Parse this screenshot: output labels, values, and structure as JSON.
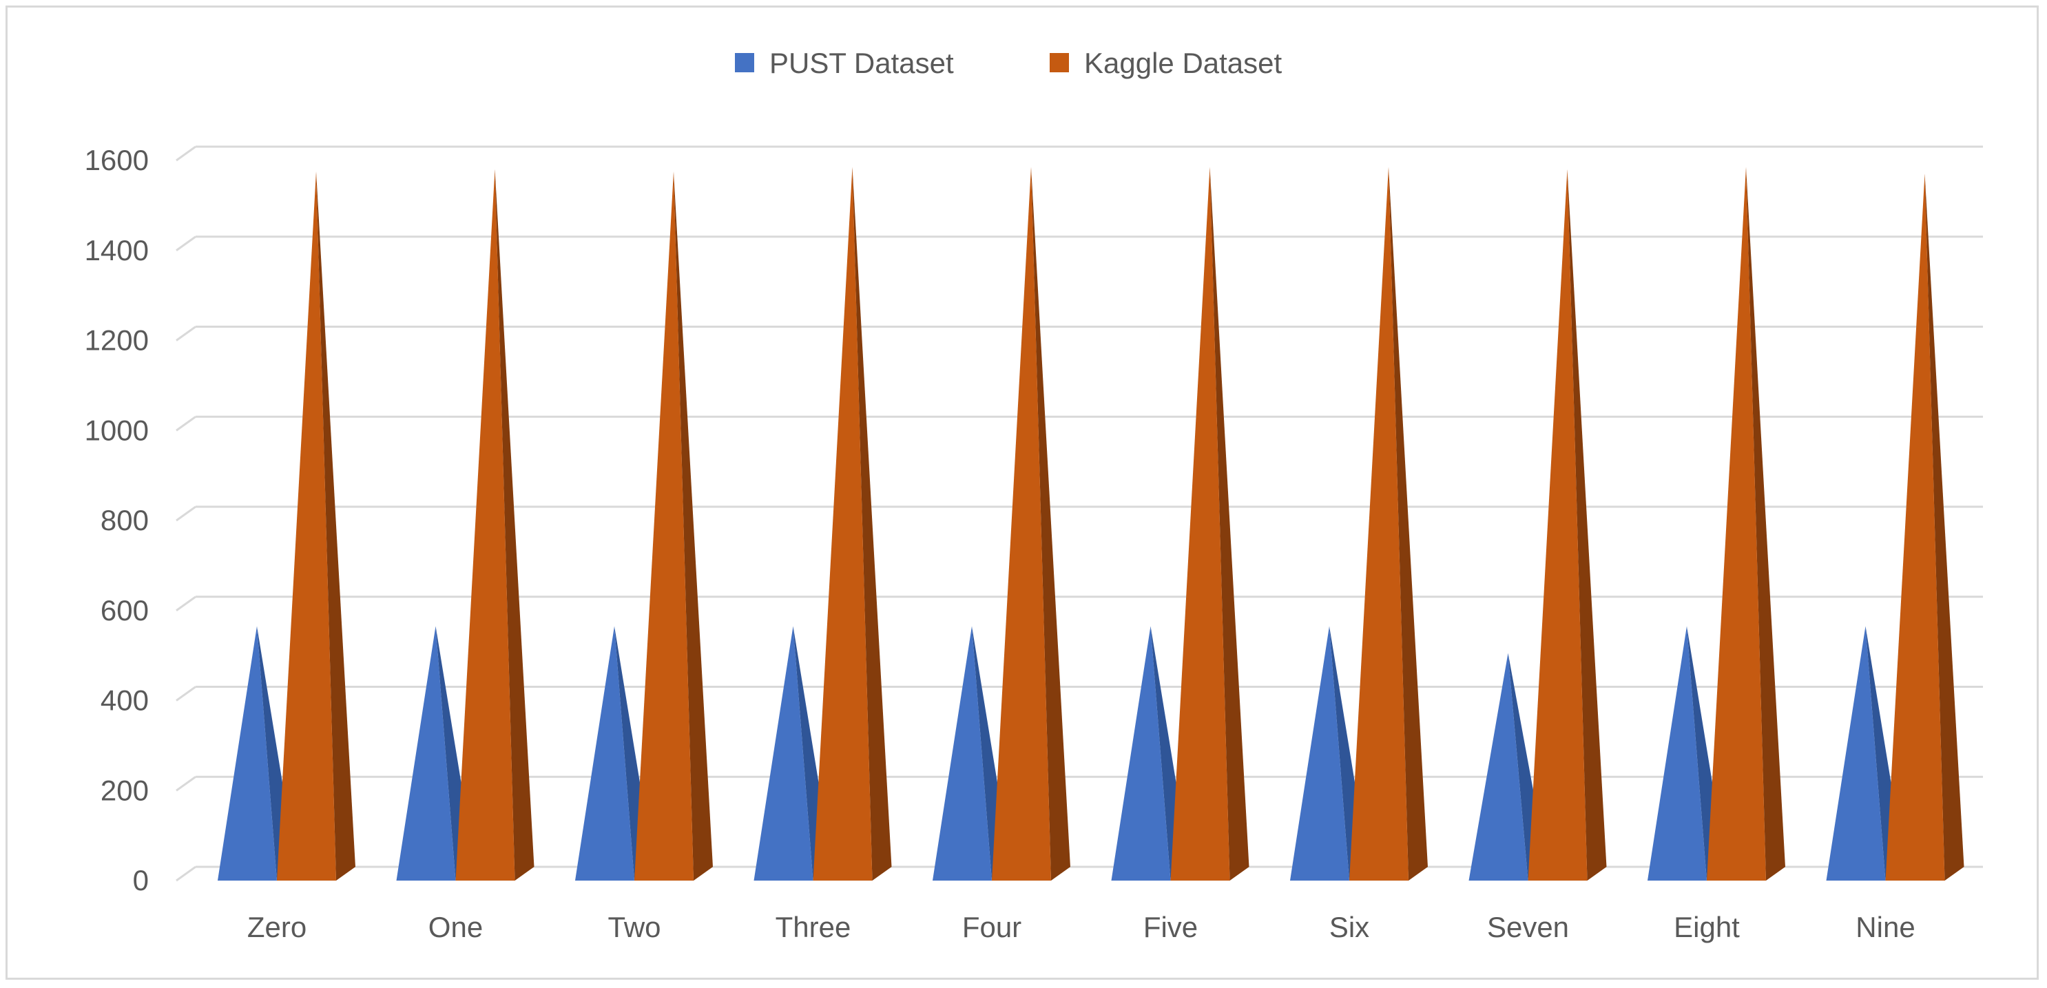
{
  "chart_data": {
    "type": "bar",
    "bar_shape": "3d-pyramid",
    "categories": [
      "Zero",
      "One",
      "Two",
      "Three",
      "Four",
      "Five",
      "Six",
      "Seven",
      "Eight",
      "Nine"
    ],
    "series": [
      {
        "name": "PUST Dataset",
        "color": "#4472C4",
        "shade": "#2F5597",
        "values": [
          550,
          550,
          550,
          550,
          550,
          550,
          550,
          490,
          550,
          550
        ]
      },
      {
        "name": "Kaggle Dataset",
        "color": "#C55A11",
        "shade": "#843C0C",
        "values": [
          1560,
          1565,
          1560,
          1570,
          1570,
          1570,
          1570,
          1565,
          1570,
          1555
        ]
      }
    ],
    "yticks": [
      "0",
      "200",
      "400",
      "600",
      "800",
      "1000",
      "1200",
      "1400",
      "1600"
    ],
    "ylim": [
      0,
      1600
    ],
    "grid": true,
    "legend_position": "top-center",
    "gridline_color": "#d9d9d9"
  }
}
